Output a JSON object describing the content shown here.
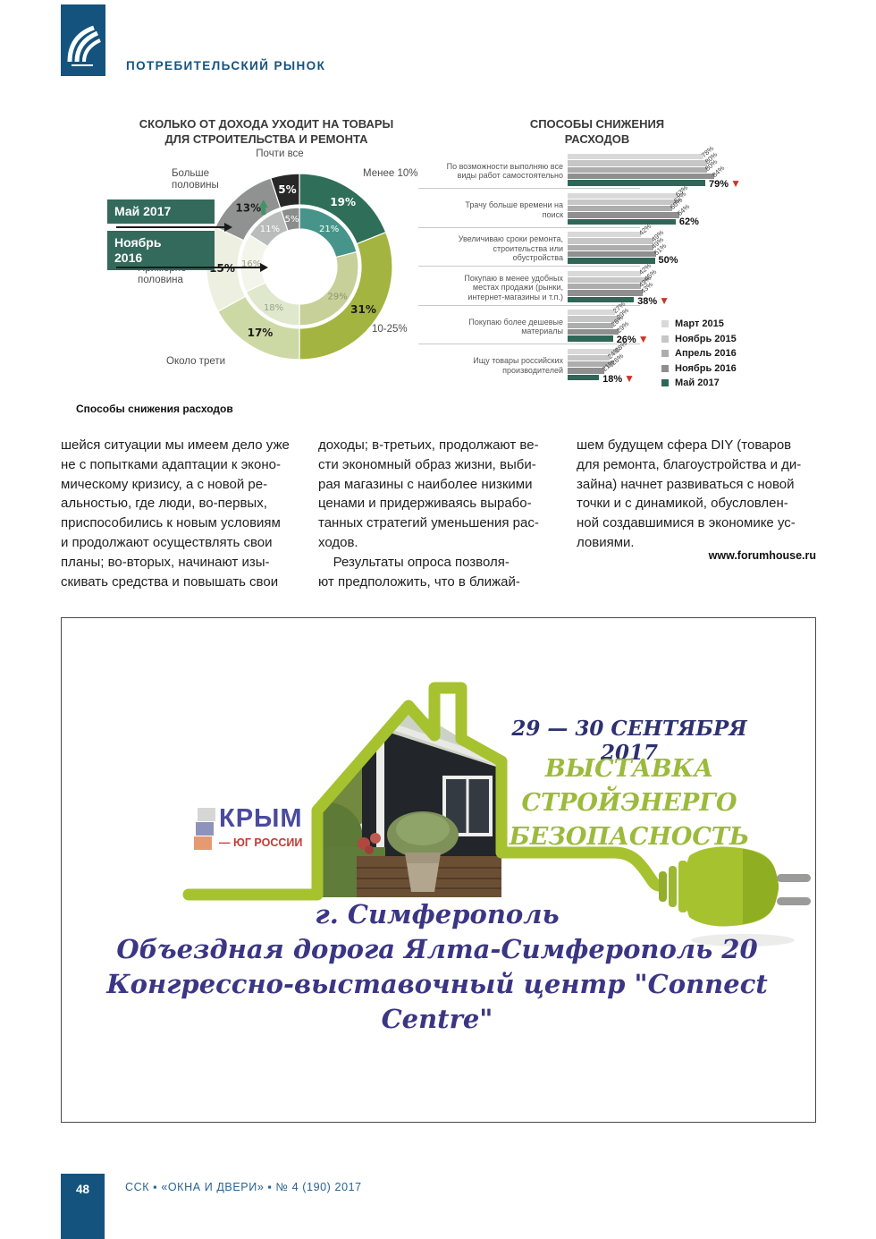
{
  "header": {
    "section": "ПОТРЕБИТЕЛЬСКИЙ РЫНОК"
  },
  "chart_data": [
    {
      "type": "donut",
      "title": "СКОЛЬКО ОТ ДОХОДА УХОДИТ НА ТОВАРЫ\nДЛЯ СТРОИТЕЛЬСТВА И РЕМОНТА",
      "rings": {
        "outer": "Май 2017",
        "inner": "Ноябрь 2016"
      },
      "segments": [
        {
          "label": "Менее 10%",
          "outer": 19,
          "inner": 21,
          "outer_color": "#2f6e58",
          "inner_color": "#47958a",
          "outer_label": "#ffffff",
          "inner_label": "#ffffff"
        },
        {
          "label": "10-25%",
          "outer": 31,
          "inner": 29,
          "outer_color": "#a3b440",
          "inner_color": "#c6d098",
          "outer_label": "#1d1d1d",
          "inner_label": "#8e9473"
        },
        {
          "label": "Около трети",
          "outer": 17,
          "inner": 18,
          "outer_color": "#cdd9a5",
          "inner_color": "#dfe8cc",
          "outer_label": "#1d1d1d",
          "inner_label": "#9aa38b"
        },
        {
          "label": "Примерно\nполовина",
          "outer": 15,
          "inner": 16,
          "outer_color": "#edefe0",
          "inner_color": "#f3f4ea",
          "outer_label": "#1d1d1d",
          "inner_label": "#9b9b8f"
        },
        {
          "label": "Больше\nполовины",
          "outer": 13,
          "inner": 11,
          "outer_color": "#8f9291",
          "inner_color": "#b9bcba",
          "outer_label": "#1d1d1d",
          "inner_label": "#ffffff",
          "arrow": "up"
        },
        {
          "label": "Почти все",
          "outer": 5,
          "inner": 5,
          "outer_color": "#272727",
          "inner_color": "#8a8d8c",
          "outer_label": "#ffffff",
          "inner_label": "#ffffff"
        }
      ],
      "arrow_up_color": "#3f9468"
    },
    {
      "type": "bar",
      "title": "СПОСОБЫ СНИЖЕНИЯ\nРАСХОДОВ",
      "value_suffix": "%",
      "series": [
        {
          "name": "Март 2015",
          "color": "#d9d9d9"
        },
        {
          "name": "Ноябрь 2015",
          "color": "#c6c6c6"
        },
        {
          "name": "Апрель 2016",
          "color": "#adadad"
        },
        {
          "name": "Ноябрь 2016",
          "color": "#8f8f8f"
        },
        {
          "name": "Май 2017",
          "color": "#2e6657"
        }
      ],
      "groups": [
        {
          "label": "По возможности выполняю все\nвиды работ самостоятельно",
          "values": [
            78,
            80,
            80,
            84,
            79
          ],
          "trend": "down"
        },
        {
          "label": "Трачу больше времени на\nпоиск",
          "values": [
            63,
            62,
            60,
            64,
            62
          ],
          "trend": null
        },
        {
          "label": "Увеличиваю сроки ремонта,\nстроительства или\nобустройства",
          "values": [
            42,
            49,
            49,
            51,
            50
          ],
          "trend": null
        },
        {
          "label": "Покупаю в менее удобных\nместах продажи (рынки,\nинтернет-магазины и т.п.)",
          "values": [
            42,
            45,
            42,
            43,
            38
          ],
          "trend": "down"
        },
        {
          "label": "Покупаю более дешевые\nматериалы",
          "values": [
            27,
            29,
            26,
            29,
            26
          ],
          "trend": "down"
        },
        {
          "label": "Ищу товары российских\nпроизводителей",
          "values": [
            28,
            24,
            26,
            21,
            18
          ],
          "trend": "down"
        }
      ],
      "trend_down_color": "#cd3426"
    }
  ],
  "figure_caption": "Способы снижения расходов",
  "article": {
    "col1": "шейся ситуации мы имеем дело уже\nне с попытками адаптации к эконо-\nмическому кризису, а с новой ре-\nальностью, где люди, во-первых,\nприспособились к новым условиям\nи продолжают осуществлять свои\nпланы; во-вторых, начинают изы-\nскивать средства и повышать свои",
    "col2": "доходы; в-третьих, продолжают ве-\nсти экономный образ жизни, выби-\nрая магазины с наиболее низкими\nценами и придерживаясь вырабо-\nтанных стратегий уменьшения рас-\nходов.\n    Результаты опроса позволя-\nют предположить, что в ближай-",
    "col3": "шем будущем сфера DIY (товаров\nдля ремонта, благоустройства и ди-\nзайна) начнет развиваться с новой\nточки и с динамикой, обусловлен-\nной создавшимися в экономике ус-\nловиями.",
    "source": "www.forumhouse.ru"
  },
  "ad": {
    "dates": "29 — 30 СЕНТЯБРЯ 2017",
    "title_lines": [
      "ВЫСТАВКА",
      "СТРОЙЭНЕРГО",
      "БЕЗОПАСНОСТЬ"
    ],
    "logo": {
      "name": "КРЫМ",
      "tagline": "— ЮГ РОССИИ"
    },
    "address": [
      "г. Симферополь",
      "Объездная дорога Ялта-Симферополь 20",
      "Конгрессно-выставочный центр \"Connect Centre\""
    ],
    "colors": {
      "cord_green": "#a6c22f",
      "title_green": "#9cba3b",
      "date_navy": "#2d3170",
      "address_purple": "#3b3684"
    }
  },
  "footer": {
    "page_number": "48",
    "journal_line": "ССК ▪ «ОКНА И ДВЕРИ» ▪ № 4 (190) 2017"
  }
}
